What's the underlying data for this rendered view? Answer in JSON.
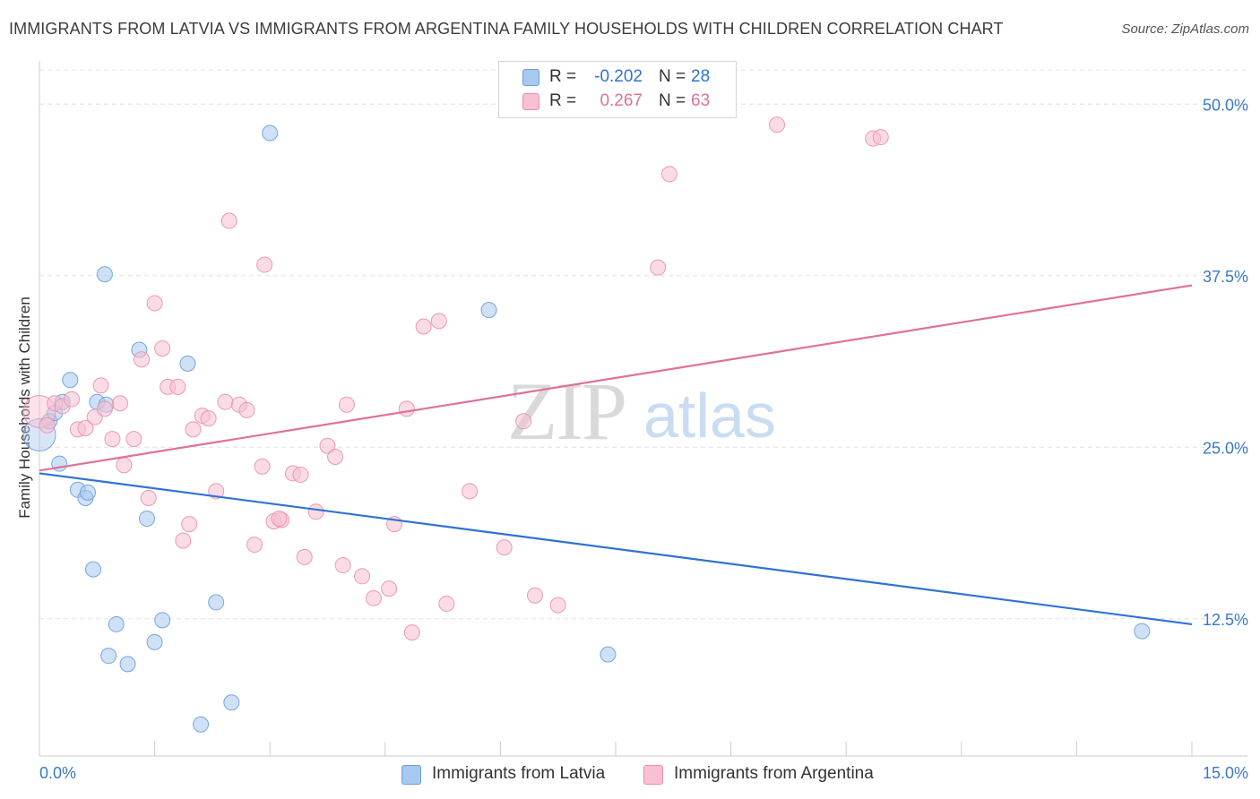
{
  "chart_data": {
    "type": "scatter",
    "title": "IMMIGRANTS FROM LATVIA VS IMMIGRANTS FROM ARGENTINA FAMILY HOUSEHOLDS WITH CHILDREN CORRELATION CHART",
    "source": "Source: ZipAtlas.com",
    "xlabel": "",
    "ylabel": "Family Households with Children",
    "xlim": [
      0,
      15
    ],
    "ylim": [
      2.5,
      52.5
    ],
    "x_tick_labels": [
      "0.0%",
      "15.0%"
    ],
    "y_ticks": [
      12.5,
      25.0,
      37.5,
      50.0
    ],
    "y_tick_labels": [
      "12.5%",
      "25.0%",
      "37.5%",
      "50.0%"
    ],
    "watermark": {
      "zip": "ZIP",
      "atlas": "atlas"
    },
    "legend_stats": [
      {
        "r_label": "R =",
        "r_value": "-0.202",
        "n_label": "N =",
        "n_value": "28"
      },
      {
        "r_label": "R =",
        "r_value": "0.267",
        "n_label": "N =",
        "n_value": "63"
      }
    ],
    "series": [
      {
        "name": "Immigrants from Latvia",
        "color": "#a8c8f0",
        "stroke": "#6a9fd8",
        "line_color": "#2f72d4",
        "trend": {
          "x": [
            0.0,
            15.0
          ],
          "y": [
            23.1,
            12.1
          ]
        },
        "points": [
          {
            "x": 0.0,
            "y": 25.9,
            "big": true
          },
          {
            "x": 0.13,
            "y": 26.9
          },
          {
            "x": 0.2,
            "y": 27.5
          },
          {
            "x": 0.3,
            "y": 28.3
          },
          {
            "x": 0.4,
            "y": 29.9
          },
          {
            "x": 0.26,
            "y": 23.8
          },
          {
            "x": 0.5,
            "y": 21.9
          },
          {
            "x": 0.6,
            "y": 21.3
          },
          {
            "x": 0.63,
            "y": 21.7
          },
          {
            "x": 0.75,
            "y": 28.3
          },
          {
            "x": 0.87,
            "y": 28.1
          },
          {
            "x": 0.85,
            "y": 37.6
          },
          {
            "x": 1.3,
            "y": 32.1
          },
          {
            "x": 1.4,
            "y": 19.8
          },
          {
            "x": 1.93,
            "y": 31.1
          },
          {
            "x": 0.7,
            "y": 16.1
          },
          {
            "x": 1.0,
            "y": 12.1
          },
          {
            "x": 1.6,
            "y": 12.4
          },
          {
            "x": 2.3,
            "y": 13.7
          },
          {
            "x": 1.5,
            "y": 10.8
          },
          {
            "x": 0.9,
            "y": 9.8
          },
          {
            "x": 1.15,
            "y": 9.2
          },
          {
            "x": 2.5,
            "y": 6.4
          },
          {
            "x": 2.1,
            "y": 4.8
          },
          {
            "x": 3.0,
            "y": 47.9
          },
          {
            "x": 5.85,
            "y": 35.0
          },
          {
            "x": 7.4,
            "y": 9.9
          },
          {
            "x": 14.35,
            "y": 11.6
          }
        ]
      },
      {
        "name": "Immigrants from Argentina",
        "color": "#f8c0d2",
        "stroke": "#e890ac",
        "line_color": "#e0709a",
        "trend": {
          "x": [
            0.0,
            15.0
          ],
          "y": [
            23.3,
            36.8
          ]
        },
        "points": [
          {
            "x": 0.0,
            "y": 27.6,
            "big": true
          },
          {
            "x": 0.2,
            "y": 28.2
          },
          {
            "x": 0.3,
            "y": 28.0
          },
          {
            "x": 0.42,
            "y": 28.5
          },
          {
            "x": 0.5,
            "y": 26.3
          },
          {
            "x": 0.6,
            "y": 26.4
          },
          {
            "x": 0.72,
            "y": 27.2
          },
          {
            "x": 0.8,
            "y": 29.5
          },
          {
            "x": 0.85,
            "y": 27.8
          },
          {
            "x": 0.95,
            "y": 25.6
          },
          {
            "x": 1.05,
            "y": 28.2
          },
          {
            "x": 1.1,
            "y": 23.7
          },
          {
            "x": 1.23,
            "y": 25.6
          },
          {
            "x": 1.33,
            "y": 31.4
          },
          {
            "x": 1.42,
            "y": 21.3
          },
          {
            "x": 1.5,
            "y": 35.5
          },
          {
            "x": 1.6,
            "y": 32.2
          },
          {
            "x": 1.67,
            "y": 29.4
          },
          {
            "x": 1.8,
            "y": 29.4
          },
          {
            "x": 1.87,
            "y": 18.2
          },
          {
            "x": 1.95,
            "y": 19.4
          },
          {
            "x": 2.0,
            "y": 26.3
          },
          {
            "x": 2.12,
            "y": 27.3
          },
          {
            "x": 2.2,
            "y": 27.1
          },
          {
            "x": 2.3,
            "y": 21.8
          },
          {
            "x": 2.42,
            "y": 28.3
          },
          {
            "x": 2.47,
            "y": 41.5
          },
          {
            "x": 2.6,
            "y": 28.1
          },
          {
            "x": 2.7,
            "y": 27.7
          },
          {
            "x": 2.8,
            "y": 17.9
          },
          {
            "x": 2.9,
            "y": 23.6
          },
          {
            "x": 2.93,
            "y": 38.3
          },
          {
            "x": 3.05,
            "y": 19.6
          },
          {
            "x": 3.15,
            "y": 19.7
          },
          {
            "x": 3.12,
            "y": 19.8
          },
          {
            "x": 3.3,
            "y": 23.1
          },
          {
            "x": 3.4,
            "y": 23.0
          },
          {
            "x": 3.45,
            "y": 17.0
          },
          {
            "x": 3.6,
            "y": 20.3
          },
          {
            "x": 3.75,
            "y": 25.1
          },
          {
            "x": 3.85,
            "y": 24.3
          },
          {
            "x": 3.95,
            "y": 16.4
          },
          {
            "x": 4.0,
            "y": 28.1
          },
          {
            "x": 4.2,
            "y": 15.6
          },
          {
            "x": 4.35,
            "y": 14.0
          },
          {
            "x": 4.55,
            "y": 14.7
          },
          {
            "x": 4.62,
            "y": 19.4
          },
          {
            "x": 4.78,
            "y": 27.8
          },
          {
            "x": 4.85,
            "y": 11.5
          },
          {
            "x": 5.0,
            "y": 33.8
          },
          {
            "x": 5.2,
            "y": 34.2
          },
          {
            "x": 5.3,
            "y": 13.6
          },
          {
            "x": 5.6,
            "y": 21.8
          },
          {
            "x": 6.05,
            "y": 17.7
          },
          {
            "x": 6.3,
            "y": 26.9
          },
          {
            "x": 6.45,
            "y": 14.2
          },
          {
            "x": 6.75,
            "y": 13.5
          },
          {
            "x": 8.05,
            "y": 38.1
          },
          {
            "x": 8.2,
            "y": 44.9
          },
          {
            "x": 9.6,
            "y": 48.5
          },
          {
            "x": 10.85,
            "y": 47.5
          },
          {
            "x": 10.95,
            "y": 47.6
          },
          {
            "x": 0.1,
            "y": 26.6
          }
        ]
      }
    ]
  }
}
